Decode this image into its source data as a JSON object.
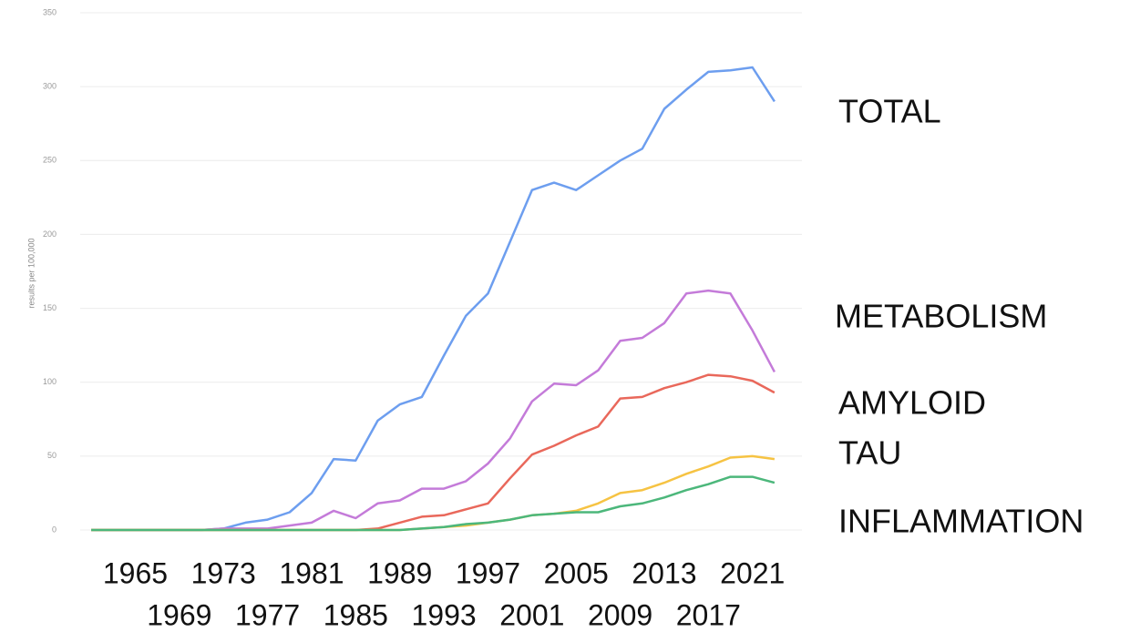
{
  "chart_data": {
    "type": "line",
    "y_label": "results per 100,000",
    "x": [
      1961,
      1963,
      1965,
      1967,
      1969,
      1971,
      1973,
      1975,
      1977,
      1979,
      1981,
      1983,
      1985,
      1987,
      1989,
      1991,
      1993,
      1995,
      1997,
      1999,
      2001,
      2003,
      2005,
      2007,
      2009,
      2011,
      2013,
      2015,
      2017,
      2019,
      2021,
      2023
    ],
    "series": [
      {
        "name": "TOTAL",
        "color": "#6d9eef",
        "values": [
          0,
          0,
          0,
          0,
          0,
          0,
          1,
          5,
          7,
          12,
          25,
          48,
          47,
          74,
          85,
          90,
          118,
          145,
          160,
          195,
          230,
          235,
          230,
          240,
          250,
          258,
          285,
          298,
          310,
          311,
          313,
          290
        ]
      },
      {
        "name": "METABOLISM",
        "color": "#c47bd9",
        "values": [
          0,
          0,
          0,
          0,
          0,
          0,
          1,
          1,
          1,
          3,
          5,
          13,
          8,
          18,
          20,
          28,
          28,
          33,
          45,
          62,
          87,
          99,
          98,
          108,
          128,
          130,
          140,
          160,
          162,
          160,
          135,
          107
        ]
      },
      {
        "name": "AMYLOID",
        "color": "#e9685b",
        "values": [
          0,
          0,
          0,
          0,
          0,
          0,
          0,
          0,
          0,
          0,
          0,
          0,
          0,
          1,
          5,
          9,
          10,
          14,
          18,
          35,
          51,
          57,
          64,
          70,
          89,
          90,
          96,
          100,
          105,
          104,
          101,
          93
        ]
      },
      {
        "name": "TAU",
        "color": "#f6c343",
        "values": [
          0,
          0,
          0,
          0,
          0,
          0,
          0,
          0,
          0,
          0,
          0,
          0,
          0,
          0,
          0,
          1,
          2,
          3,
          5,
          7,
          10,
          11,
          13,
          18,
          25,
          27,
          32,
          38,
          43,
          49,
          50,
          48
        ]
      },
      {
        "name": "INFLAMMATION",
        "color": "#4cb77b",
        "values": [
          0,
          0,
          0,
          0,
          0,
          0,
          0,
          0,
          0,
          0,
          0,
          0,
          0,
          0,
          0,
          1,
          2,
          4,
          5,
          7,
          10,
          11,
          12,
          12,
          16,
          18,
          22,
          27,
          31,
          36,
          36,
          32
        ]
      }
    ],
    "xlim": [
      1960,
      2024
    ],
    "xticks": [
      1965,
      1969,
      1973,
      1977,
      1981,
      1985,
      1989,
      1993,
      1997,
      2001,
      2005,
      2009,
      2013,
      2017,
      2021
    ],
    "ylim": [
      0,
      350
    ],
    "yticks": [
      0,
      50,
      100,
      150,
      200,
      250,
      300,
      350
    ],
    "grid": true
  }
}
